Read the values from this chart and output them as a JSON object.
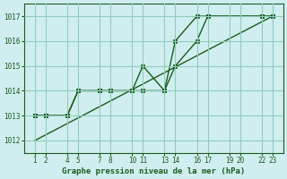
{
  "title": "Graphe pression niveau de la mer (hPa)",
  "bg_color": "#d0eef0",
  "grid_color": "#90ccbb",
  "line_color": "#1a5c1a",
  "tick_color": "#1a5c1a",
  "label_color": "#1a5c1a",
  "ylim": [
    1011.5,
    1017.5
  ],
  "yticks": [
    1012,
    1013,
    1014,
    1015,
    1016,
    1017
  ],
  "xlim": [
    0,
    24
  ],
  "xtick_positions": [
    1,
    2,
    4,
    5,
    7,
    8,
    10,
    11,
    13,
    14,
    16,
    17,
    19,
    20,
    22,
    23
  ],
  "xtick_labels": [
    "1",
    "2",
    "4",
    "5",
    "7",
    "8",
    "10",
    "11",
    "13",
    "14",
    "16",
    "17",
    "19",
    "20",
    "22",
    "23"
  ],
  "series": [
    {
      "x": [
        1,
        23
      ],
      "y": [
        1012.0,
        1017.0
      ],
      "marker": "None",
      "markersize": 0,
      "linewidth": 1.0,
      "linestyle": "-"
    },
    {
      "x": [
        1,
        2,
        4,
        5,
        7,
        8,
        10,
        11,
        13,
        14,
        16,
        17,
        22,
        23
      ],
      "y": [
        1013.0,
        1013.0,
        1013.0,
        1014.0,
        1014.0,
        1014.0,
        1014.0,
        1014.0,
        1014.0,
        1015.0,
        1016.0,
        1017.0,
        1017.0,
        1017.0
      ],
      "marker": "s",
      "markersize": 2.5,
      "linewidth": 1.0,
      "linestyle": "-"
    },
    {
      "x": [
        1,
        2,
        4,
        5,
        7,
        8,
        10,
        11,
        13,
        14,
        16,
        17,
        22,
        23
      ],
      "y": [
        1013.0,
        1013.0,
        1013.0,
        1014.0,
        1014.0,
        1014.0,
        1014.0,
        1015.0,
        1014.0,
        1016.0,
        1017.0,
        1017.0,
        1017.0,
        1017.0
      ],
      "marker": "s",
      "markersize": 2.5,
      "linewidth": 1.0,
      "linestyle": "-"
    }
  ]
}
